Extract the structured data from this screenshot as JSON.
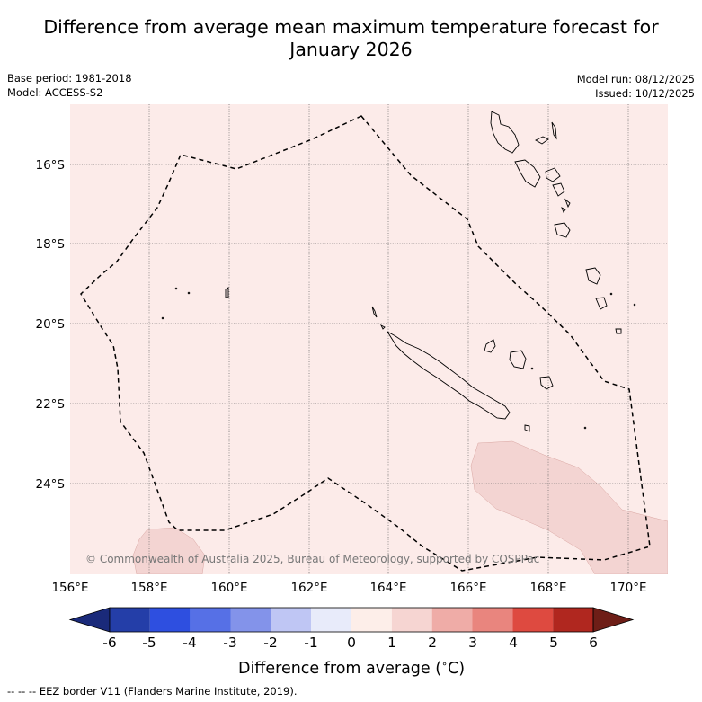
{
  "title": {
    "line1": "Difference from average mean maximum temperature forecast for",
    "line2": "January 2026"
  },
  "meta": {
    "base_period": "Base period: 1981-2018",
    "model": "Model: ACCESS-S2",
    "model_run": "Model run: 08/12/2025",
    "issued": "Issued: 10/12/2025"
  },
  "map": {
    "lat_labels": [
      "16°S",
      "18°S",
      "20°S",
      "22°S",
      "24°S"
    ],
    "lon_labels": [
      "156°E",
      "158°E",
      "160°E",
      "162°E",
      "164°E",
      "166°E",
      "168°E",
      "170°E"
    ],
    "background_anomaly_color": "#fcebe9",
    "warm_patch_color": "#f3d4d2",
    "eez_line_color": "#000000",
    "copyright": "© Commonwealth of Australia 2025, Bureau of Meteorology, supported by COSPPac"
  },
  "colorbar": {
    "ticks": [
      "-6",
      "-5",
      "-4",
      "-3",
      "-2",
      "-1",
      "0",
      "1",
      "2",
      "3",
      "4",
      "5",
      "6"
    ],
    "colors": [
      "#1a2a7a",
      "#243ea8",
      "#2e4fe0",
      "#5670e6",
      "#8393ea",
      "#bfc6f4",
      "#e8ebfa",
      "#fdeee9",
      "#f6d5d2",
      "#efaca7",
      "#e9857e",
      "#de4a40",
      "#b0271f",
      "#6e1e17"
    ],
    "label": "Difference from average (",
    "label_unit": "C)",
    "degree": "∘"
  },
  "footnote": "-- -- -- EEZ border V11 (Flanders Marine Institute, 2019)."
}
